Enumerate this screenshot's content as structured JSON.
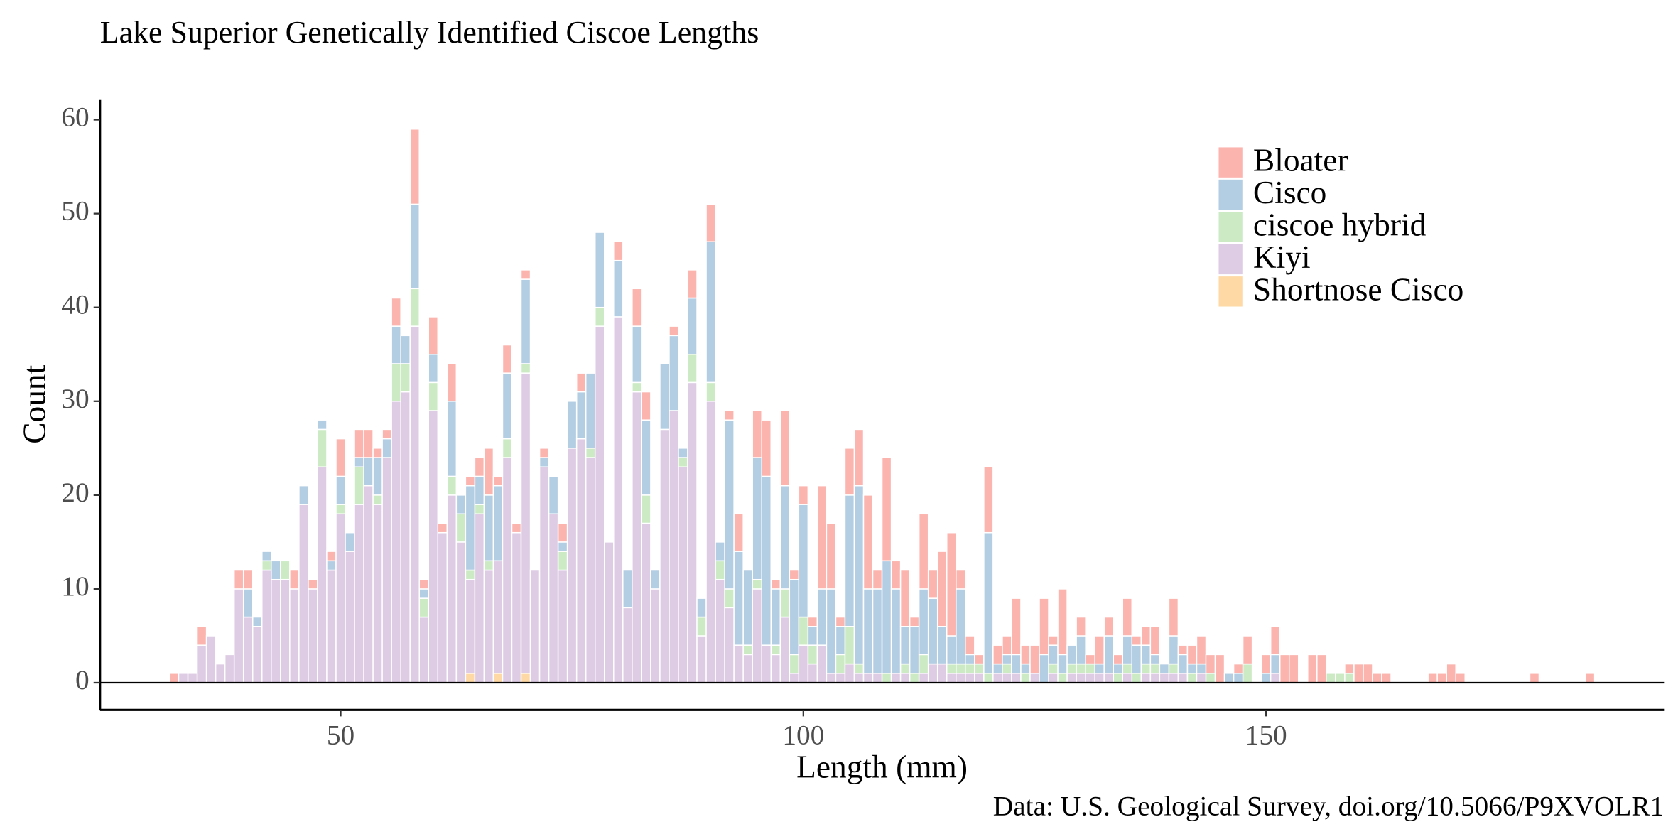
{
  "chart_data": {
    "type": "stacked_bar",
    "title": "Lake Superior Genetically Identified Ciscoe Lengths",
    "x_label": "Length (mm)",
    "y_label": "Count",
    "caption": "Data: U.S. Geological Survey, doi.org/10.5066/P9XVOLR1",
    "xlim": [
      24,
      193
    ],
    "xticks": [
      50,
      100,
      150
    ],
    "ylim": [
      -2.9,
      62.1
    ],
    "yticks": [
      0,
      10,
      20,
      30,
      40,
      50,
      60
    ],
    "hline": 0,
    "grid": false,
    "legend_position": "top-right",
    "x": [
      32,
      33,
      34,
      35,
      36,
      37,
      38,
      39,
      40,
      41,
      42,
      43,
      44,
      45,
      46,
      47,
      48,
      49,
      50,
      51,
      52,
      53,
      54,
      55,
      56,
      57,
      58,
      59,
      60,
      61,
      62,
      63,
      64,
      65,
      66,
      67,
      68,
      69,
      70,
      71,
      72,
      73,
      74,
      75,
      76,
      77,
      78,
      79,
      80,
      81,
      82,
      83,
      84,
      85,
      86,
      87,
      88,
      89,
      90,
      91,
      92,
      93,
      94,
      95,
      96,
      97,
      98,
      99,
      100,
      101,
      102,
      103,
      104,
      105,
      106,
      107,
      108,
      109,
      110,
      111,
      112,
      113,
      114,
      115,
      116,
      117,
      118,
      119,
      120,
      121,
      122,
      123,
      124,
      125,
      126,
      127,
      128,
      129,
      130,
      131,
      132,
      133,
      134,
      135,
      136,
      137,
      138,
      139,
      140,
      141,
      142,
      143,
      144,
      145,
      146,
      147,
      148,
      149,
      150,
      151,
      152,
      153,
      154,
      155,
      156,
      157,
      158,
      159,
      160,
      161,
      162,
      163,
      164,
      165,
      166,
      167,
      168,
      169,
      170,
      171,
      172,
      173,
      174,
      175,
      176,
      177,
      178,
      179,
      180,
      181,
      182,
      183,
      184,
      185
    ],
    "series": [
      {
        "name": "Bloater",
        "color": "#fbb4ae",
        "values": [
          1,
          0,
          0,
          2,
          0,
          0,
          0,
          2,
          2,
          0,
          0,
          0,
          0,
          2,
          0,
          1,
          0,
          1,
          4,
          0,
          3,
          3,
          1,
          1,
          3,
          0,
          8,
          1,
          4,
          1,
          4,
          0,
          1,
          2,
          5,
          1,
          3,
          1,
          1,
          0,
          1,
          0,
          2,
          0,
          2,
          0,
          0,
          0,
          2,
          0,
          4,
          3,
          0,
          0,
          1,
          0,
          3,
          0,
          4,
          0,
          1,
          4,
          0,
          5,
          6,
          1,
          8,
          1,
          2,
          1,
          11,
          7,
          1,
          5,
          6,
          10,
          2,
          11,
          3,
          6,
          1,
          8,
          3,
          8,
          11,
          2,
          2,
          1,
          7,
          2,
          2,
          6,
          2,
          3,
          6,
          1,
          7,
          0,
          2,
          1,
          3,
          2,
          1,
          4,
          1,
          2,
          3,
          0,
          4,
          1,
          2,
          3,
          2,
          3,
          0,
          1,
          3,
          0,
          2,
          3,
          3,
          3,
          0,
          3,
          3,
          0,
          0,
          1,
          2,
          2,
          1,
          1,
          0,
          0,
          0,
          0,
          1,
          1,
          2,
          1,
          0,
          0,
          0,
          0,
          0,
          0,
          0,
          1,
          0,
          0,
          0,
          0,
          0,
          1
        ]
      },
      {
        "name": "Cisco",
        "color": "#b3cde3",
        "values": [
          0,
          0,
          0,
          0,
          0,
          0,
          0,
          0,
          3,
          1,
          1,
          2,
          0,
          0,
          2,
          0,
          1,
          1,
          3,
          2,
          1,
          3,
          4,
          2,
          4,
          3,
          9,
          1,
          3,
          0,
          8,
          2,
          9,
          3,
          7,
          8,
          7,
          0,
          9,
          0,
          1,
          4,
          1,
          5,
          5,
          8,
          8,
          0,
          6,
          4,
          6,
          8,
          2,
          7,
          8,
          1,
          6,
          2,
          15,
          2,
          18,
          10,
          8,
          13,
          18,
          6,
          11,
          8,
          12,
          2,
          6,
          9,
          3,
          14,
          19,
          9,
          9,
          12,
          9,
          4,
          5,
          7,
          7,
          4,
          3,
          8,
          1,
          0,
          15,
          1,
          1,
          2,
          1,
          0,
          3,
          2,
          2,
          2,
          3,
          0,
          1,
          4,
          1,
          3,
          3,
          2,
          1,
          1,
          3,
          2,
          1,
          1,
          0,
          0,
          1,
          1,
          0,
          0,
          1,
          2,
          0,
          0,
          0,
          0,
          0,
          0,
          0,
          0,
          0,
          0,
          0,
          0,
          0,
          0,
          0,
          0,
          0,
          0,
          0,
          0,
          0,
          0,
          0,
          0,
          0,
          0,
          0,
          0,
          0,
          0,
          0,
          0,
          0,
          0
        ]
      },
      {
        "name": "ciscoe hybrid",
        "color": "#ccebc5",
        "values": [
          0,
          0,
          0,
          0,
          0,
          0,
          0,
          0,
          0,
          0,
          1,
          0,
          2,
          0,
          0,
          0,
          4,
          0,
          1,
          0,
          4,
          0,
          1,
          0,
          4,
          3,
          4,
          2,
          3,
          0,
          2,
          3,
          1,
          1,
          1,
          0,
          2,
          0,
          1,
          0,
          0,
          0,
          2,
          0,
          0,
          1,
          2,
          0,
          0,
          0,
          1,
          3,
          0,
          0,
          0,
          1,
          3,
          2,
          2,
          2,
          2,
          0,
          1,
          1,
          0,
          1,
          3,
          2,
          3,
          2,
          0,
          0,
          2,
          4,
          1,
          0,
          0,
          1,
          0,
          1,
          1,
          2,
          0,
          0,
          1,
          1,
          1,
          1,
          1,
          0,
          1,
          0,
          1,
          0,
          0,
          1,
          1,
          1,
          1,
          1,
          0,
          0,
          1,
          1,
          1,
          1,
          1,
          0,
          1,
          0,
          1,
          0,
          1,
          0,
          0,
          0,
          2,
          0,
          0,
          0,
          0,
          0,
          0,
          0,
          0,
          1,
          1,
          1,
          0,
          0,
          0,
          0,
          0,
          0,
          0,
          0,
          0,
          0,
          0,
          0,
          0,
          0,
          0,
          0,
          0,
          0,
          0,
          0,
          0,
          0,
          0,
          0,
          0,
          0
        ]
      },
      {
        "name": "Kiyi",
        "color": "#decbe4",
        "values": [
          0,
          1,
          1,
          4,
          5,
          2,
          3,
          10,
          7,
          6,
          12,
          11,
          11,
          10,
          19,
          10,
          23,
          12,
          18,
          14,
          19,
          21,
          19,
          24,
          30,
          31,
          38,
          7,
          29,
          16,
          20,
          15,
          10,
          18,
          12,
          12,
          24,
          16,
          32,
          12,
          23,
          18,
          12,
          25,
          26,
          24,
          38,
          15,
          39,
          8,
          31,
          17,
          10,
          27,
          29,
          23,
          32,
          5,
          30,
          11,
          8,
          4,
          3,
          10,
          4,
          3,
          7,
          1,
          4,
          2,
          4,
          1,
          1,
          2,
          1,
          1,
          1,
          0,
          1,
          1,
          0,
          1,
          2,
          2,
          1,
          1,
          1,
          1,
          0,
          1,
          1,
          1,
          0,
          1,
          0,
          1,
          0,
          1,
          1,
          1,
          1,
          1,
          0,
          1,
          0,
          1,
          1,
          1,
          1,
          1,
          0,
          1,
          0,
          0,
          0,
          0,
          0,
          0,
          0,
          1,
          0,
          0,
          0,
          0,
          0,
          0,
          0,
          0,
          0,
          0,
          0,
          0,
          0,
          0,
          0,
          0,
          0,
          0,
          0,
          0,
          0,
          0,
          0,
          0,
          0,
          0,
          0,
          0,
          0,
          0,
          0,
          0,
          0,
          0
        ]
      },
      {
        "name": "Shortnose Cisco",
        "color": "#fed9a6",
        "values": [
          0,
          0,
          0,
          0,
          0,
          0,
          0,
          0,
          0,
          0,
          0,
          0,
          0,
          0,
          0,
          0,
          0,
          0,
          0,
          0,
          0,
          0,
          0,
          0,
          0,
          0,
          0,
          0,
          0,
          0,
          0,
          0,
          1,
          0,
          0,
          1,
          0,
          0,
          1,
          0,
          0,
          0,
          0,
          0,
          0,
          0,
          0,
          0,
          0,
          0,
          0,
          0,
          0,
          0,
          0,
          0,
          0,
          0,
          0,
          0,
          0,
          0,
          0,
          0,
          0,
          0,
          0,
          0,
          0,
          0,
          0,
          0,
          0,
          0,
          0,
          0,
          0,
          0,
          0,
          0,
          0,
          0,
          0,
          0,
          0,
          0,
          0,
          0,
          0,
          0,
          0,
          0,
          0,
          0,
          0,
          0,
          0,
          0,
          0,
          0,
          0,
          0,
          0,
          0,
          0,
          0,
          0,
          0,
          0,
          0,
          0,
          0,
          0,
          0,
          0,
          0,
          0,
          0,
          0,
          0,
          0,
          0,
          0,
          0,
          0,
          0,
          0,
          0,
          0,
          0,
          0,
          0,
          0,
          0,
          0,
          0,
          0,
          0,
          0,
          0,
          0,
          0,
          0,
          0,
          0,
          0,
          0,
          0,
          0,
          0,
          0,
          0,
          0,
          0
        ]
      }
    ]
  }
}
